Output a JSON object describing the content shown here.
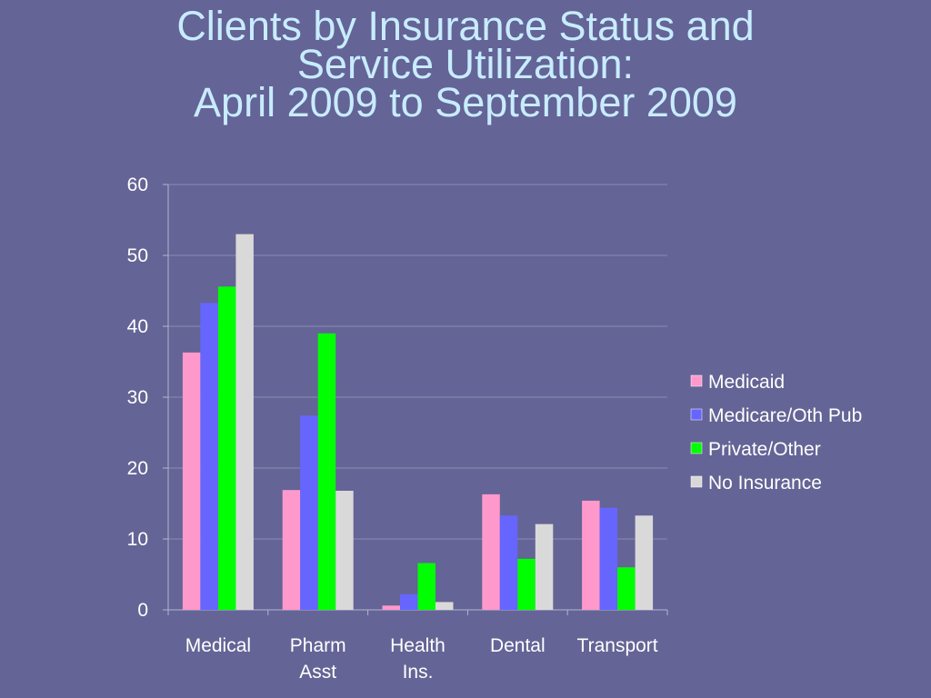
{
  "chart_data": {
    "type": "bar",
    "title": [
      "Clients by Insurance Status and",
      "Service Utilization:",
      "April 2009 to September 2009"
    ],
    "categories": [
      [
        "Medical"
      ],
      [
        "Pharm",
        "Asst"
      ],
      [
        "Health",
        "Ins."
      ],
      [
        "Dental"
      ],
      [
        "Transport"
      ]
    ],
    "series": [
      {
        "name": "Medicaid",
        "color": "#ff99cc",
        "values": [
          36.3,
          16.9,
          0.6,
          16.3,
          15.4
        ]
      },
      {
        "name": "Medicare/Oth Pub",
        "color": "#6666ff",
        "values": [
          43.3,
          27.4,
          2.2,
          13.3,
          14.4
        ]
      },
      {
        "name": "Private/Other",
        "color": "#00ff00",
        "values": [
          45.6,
          39.0,
          6.6,
          7.2,
          6.0
        ]
      },
      {
        "name": "No Insurance",
        "color": "#d9d9d9",
        "values": [
          53.0,
          16.8,
          1.1,
          12.1,
          13.3
        ]
      }
    ],
    "ylim": [
      0,
      60
    ],
    "yticks": [
      "0",
      "10",
      "20",
      "30",
      "40",
      "50",
      "60"
    ],
    "grid": true,
    "legend": "right"
  }
}
